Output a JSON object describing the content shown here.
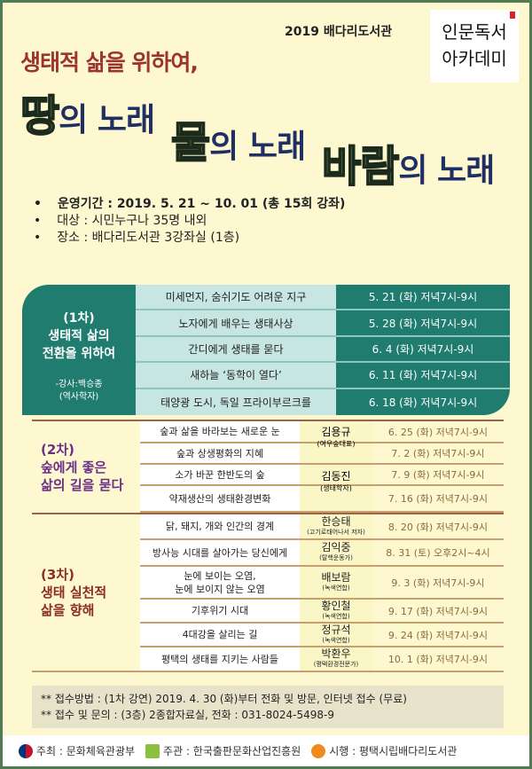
{
  "header": {
    "library": "2019 배다리도서관",
    "logo_text": [
      "인문독서",
      "아카데미"
    ],
    "subtitle": "생태적 삶을 위하여,",
    "songs": [
      {
        "big": "땅",
        "rest": "의 노래"
      },
      {
        "big": "물",
        "rest": "의 노래"
      },
      {
        "big": "바람",
        "rest": "의 노래"
      }
    ]
  },
  "info": [
    "운영기간 : 2019. 5. 21 ~ 10. 01 (총 15회 강좌)",
    "대상 : 시민누구나 35명 내외",
    "장소 : 배다리도서관 3강좌실 (1층)"
  ],
  "part1": {
    "label": "(1차)",
    "title1": "생태적 삶의",
    "title2": "전환을 위하여",
    "lecturer": "-강사:백승종",
    "lecturer_role": "(역사학자)",
    "rows": [
      {
        "topic": "미세먼지, 숨쉬기도 어려운 지구",
        "date": "5. 21 (화) 저녁7시-9시"
      },
      {
        "topic": "노자에게 배우는 생태사상",
        "date": "5. 28 (화) 저녁7시-9시"
      },
      {
        "topic": "간디에게 생태를 묻다",
        "date": "6. 4 (화) 저녁7시-9시"
      },
      {
        "topic": "새하늘 ‘동학이 열다’",
        "date": "6. 11 (화) 저녁7시-9시"
      },
      {
        "topic": "태양광 도시, 독일 프라이부르크를",
        "date": "6. 18 (화) 저녁7시-9시"
      }
    ]
  },
  "part2": {
    "label": "(2차)",
    "title1": "숲에게 좋은",
    "title2": "삶의 길을 묻다",
    "rows": [
      {
        "topic": "숲과 삶을 바라보는 새로운 눈",
        "date": "6. 25 (화)  저녁7시-9시"
      },
      {
        "topic": "숲과 상생평화의 지혜",
        "date": "7. 2 (화)  저녁7시-9시"
      },
      {
        "topic": "소가 바꾼 한반도의 숲",
        "date": "7. 9 (화)  저녁7시-9시"
      },
      {
        "topic": "약재생산의 생태환경변화",
        "date": "7. 16 (화)  저녁7시-9시"
      }
    ],
    "lecturers": [
      {
        "name": "김용규",
        "role": "(여우숲대표)"
      },
      {
        "name": "김동진",
        "role": "(생태학자)"
      }
    ]
  },
  "part3": {
    "label": "(3차)",
    "title1": "생태 실천적",
    "title2": "삶을 향해",
    "rows": [
      {
        "topic": "닭, 돼지, 개와 인간의 경계",
        "name": "한승태",
        "role": "(고기로태어나서 저자)",
        "date": "8. 20 (화) 저녁7시-9시"
      },
      {
        "topic": "방사능 시대를 살아가는 당신에게",
        "name": "김익중",
        "role": "(탈핵운동가)",
        "date": "8. 31 (토) 오후2시~4시"
      },
      {
        "topic": "눈에 보이는 오염,",
        "topic2": "눈에 보이지 않는 오염",
        "name": "배보람",
        "role": "(녹색연합)",
        "date": "9. 3 (화) 저녁7시-9시"
      },
      {
        "topic": "기후위기 시대",
        "name": "황인철",
        "role": "(녹색연합)",
        "date": "9. 17 (화) 저녁7시-9시"
      },
      {
        "topic": "4대강을 살리는 길",
        "name": "정규석",
        "role": "(녹색연합)",
        "date": "9. 24 (화) 저녁7시-9시"
      },
      {
        "topic": "평택의 생태를 지키는 사람들",
        "name": "박환우",
        "role": "(평택환경전문가)",
        "date": "10. 1 (화) 저녁7시-9시"
      }
    ]
  },
  "notes": [
    "**  접수방법 : (1차 강연) 2019. 4. 30 (화)부터 전화 및 방문, 인터넷 접수 (무료)",
    "**  접수 및 문의 : (3층) 2종합자료실, 전화 : 031-8024-5498-9"
  ],
  "footer": {
    "host": "주최 : 문화체육관광부",
    "organizer": "주관 : 한국출판문화산업진흥원",
    "operator": "시행 : 평택시립배다리도서관"
  }
}
